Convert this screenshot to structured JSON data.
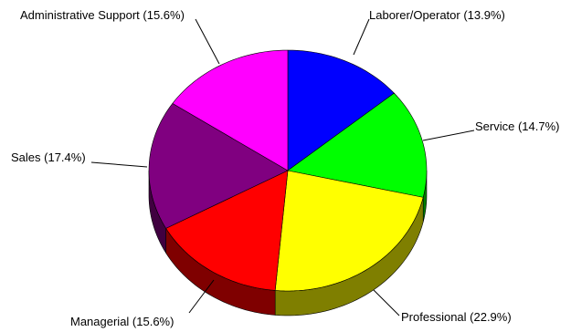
{
  "chart_data": {
    "type": "pie",
    "title": "",
    "style": "3d",
    "slices": [
      {
        "label": "Laborer/Operator",
        "value": 13.9,
        "display": "Laborer/Operator (13.9%)",
        "color": "#0000FF",
        "side_color": "#00007F"
      },
      {
        "label": "Service",
        "value": 14.7,
        "display": "Service (14.7%)",
        "color": "#00FF00",
        "side_color": "#007F00"
      },
      {
        "label": "Professional",
        "value": 22.9,
        "display": "Professional (22.9%)",
        "color": "#FFFF00",
        "side_color": "#7F7F00"
      },
      {
        "label": "Managerial",
        "value": 15.6,
        "display": "Managerial (15.6%)",
        "color": "#FF0000",
        "side_color": "#7F0000"
      },
      {
        "label": "Sales",
        "value": 17.4,
        "display": "Sales (17.4%)",
        "color": "#800080",
        "side_color": "#400040"
      },
      {
        "label": "Administrative Support",
        "value": 15.6,
        "display": "Administrative Support (15.6%)",
        "color": "#FF00FF",
        "side_color": "#7F007F"
      }
    ]
  }
}
